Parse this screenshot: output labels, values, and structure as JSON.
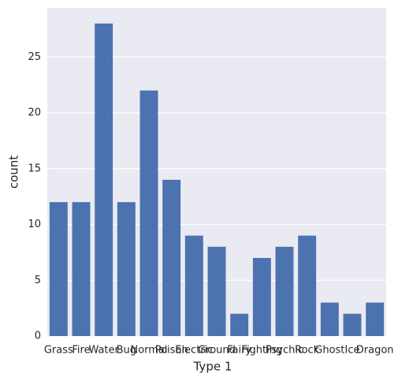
{
  "chart_data": {
    "type": "bar",
    "x_label": "Type 1",
    "y_label": "count",
    "categories": [
      "Grass",
      "Fire",
      "Water",
      "Bug",
      "Normal",
      "Poison",
      "Electric",
      "Ground",
      "Fairy",
      "Fighting",
      "Psychic",
      "Rock",
      "Ghost",
      "Ice",
      "Dragon"
    ],
    "values": [
      12,
      12,
      28,
      12,
      22,
      14,
      9,
      8,
      2,
      7,
      8,
      9,
      3,
      2,
      3
    ],
    "color": "#4c72b0",
    "ylim": [
      0,
      29.4
    ],
    "yticks": [
      0,
      5,
      10,
      15,
      20,
      25
    ],
    "grid": true
  }
}
